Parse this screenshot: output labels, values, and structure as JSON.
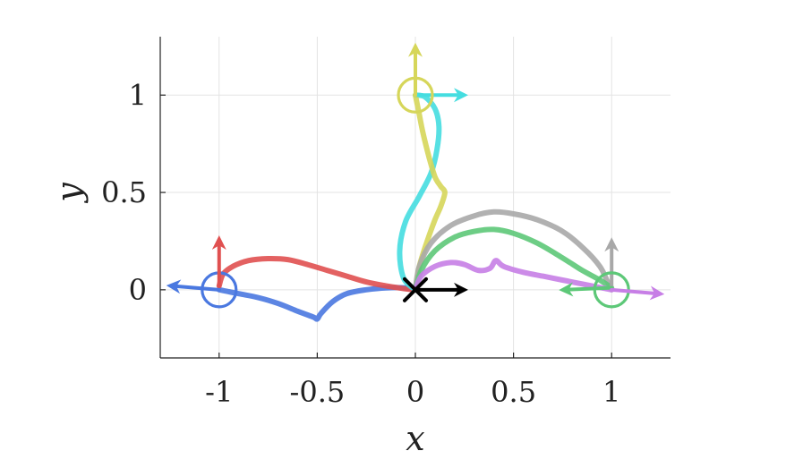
{
  "chart_data": {
    "type": "line",
    "title": "",
    "xlabel": "x",
    "ylabel": "y",
    "xlim": [
      -1.3,
      1.3
    ],
    "ylim": [
      -0.35,
      1.3
    ],
    "xticks": [
      -1,
      -0.5,
      0,
      0.5,
      1
    ],
    "xtick_labels": [
      "-1",
      "-0.5",
      "0",
      "0.5",
      "1"
    ],
    "yticks": [
      0,
      0.5,
      1
    ],
    "ytick_labels": [
      "0",
      "0.5",
      "1"
    ],
    "grid": true,
    "origin_marker": {
      "symbol": "×",
      "x": 0,
      "y": 0,
      "color": "#000000"
    },
    "series": [
      {
        "color": "#4a78e0",
        "points": [
          [
            -1,
            0
          ],
          [
            -0.9,
            -0.02
          ],
          [
            -0.8,
            -0.04
          ],
          [
            -0.7,
            -0.07
          ],
          [
            -0.6,
            -0.11
          ],
          [
            -0.52,
            -0.14
          ],
          [
            -0.5,
            -0.15
          ],
          [
            -0.48,
            -0.12
          ],
          [
            -0.42,
            -0.06
          ],
          [
            -0.35,
            -0.02
          ],
          [
            -0.25,
            0.0
          ],
          [
            -0.15,
            0.01
          ],
          [
            -0.05,
            0.01
          ],
          [
            0,
            0
          ]
        ],
        "start_arrow": {
          "x": -1,
          "y": 0,
          "dx": -0.24,
          "dy": 0.02
        },
        "goal_circle": {
          "x": -1,
          "y": 0
        }
      },
      {
        "color": "#e05050",
        "points": [
          [
            -1,
            0.02
          ],
          [
            -0.98,
            0.08
          ],
          [
            -0.93,
            0.12
          ],
          [
            -0.85,
            0.15
          ],
          [
            -0.75,
            0.16
          ],
          [
            -0.65,
            0.155
          ],
          [
            -0.55,
            0.13
          ],
          [
            -0.45,
            0.1
          ],
          [
            -0.35,
            0.07
          ],
          [
            -0.25,
            0.04
          ],
          [
            -0.15,
            0.02
          ],
          [
            -0.05,
            0.005
          ],
          [
            0,
            0
          ]
        ],
        "start_arrow": {
          "x": -1,
          "y": 0.02,
          "dx": 0,
          "dy": 0.23
        }
      },
      {
        "color": "#45dde0",
        "points": [
          [
            0,
            0
          ],
          [
            -0.06,
            0.06
          ],
          [
            -0.08,
            0.2
          ],
          [
            -0.05,
            0.35
          ],
          [
            0.02,
            0.48
          ],
          [
            0.08,
            0.6
          ],
          [
            0.11,
            0.72
          ],
          [
            0.12,
            0.84
          ],
          [
            0.1,
            0.93
          ],
          [
            0.05,
            0.99
          ],
          [
            0,
            1
          ]
        ],
        "start_arrow": {
          "x": 0,
          "y": 1,
          "dx": 0.24,
          "dy": 0
        }
      },
      {
        "color": "#d6d65a",
        "points": [
          [
            0,
            0
          ],
          [
            0.02,
            0.12
          ],
          [
            0.06,
            0.25
          ],
          [
            0.1,
            0.36
          ],
          [
            0.13,
            0.43
          ],
          [
            0.15,
            0.5
          ],
          [
            0.13,
            0.53
          ],
          [
            0.1,
            0.58
          ],
          [
            0.07,
            0.68
          ],
          [
            0.04,
            0.8
          ],
          [
            0.02,
            0.9
          ],
          [
            0,
            1
          ]
        ],
        "start_arrow": {
          "x": 0,
          "y": 1,
          "dx": 0,
          "dy": 0.24
        },
        "goal_circle": {
          "x": 0,
          "y": 1
        }
      },
      {
        "color": "#a8a8a8",
        "points": [
          [
            0,
            0
          ],
          [
            0.02,
            0.12
          ],
          [
            0.08,
            0.24
          ],
          [
            0.18,
            0.33
          ],
          [
            0.3,
            0.38
          ],
          [
            0.4,
            0.4
          ],
          [
            0.5,
            0.39
          ],
          [
            0.62,
            0.36
          ],
          [
            0.75,
            0.3
          ],
          [
            0.86,
            0.21
          ],
          [
            0.94,
            0.12
          ],
          [
            0.98,
            0.04
          ],
          [
            1,
            0
          ]
        ],
        "start_arrow": {
          "x": 1,
          "y": 0,
          "dx": 0,
          "dy": 0.24
        }
      },
      {
        "color": "#5dc878",
        "points": [
          [
            0,
            0
          ],
          [
            0.03,
            0.1
          ],
          [
            0.1,
            0.2
          ],
          [
            0.2,
            0.27
          ],
          [
            0.3,
            0.3
          ],
          [
            0.4,
            0.31
          ],
          [
            0.5,
            0.29
          ],
          [
            0.62,
            0.24
          ],
          [
            0.74,
            0.17
          ],
          [
            0.85,
            0.1
          ],
          [
            0.94,
            0.05
          ],
          [
            1,
            0.01
          ]
        ],
        "start_arrow": {
          "x": 1,
          "y": 0.01,
          "dx": -0.24,
          "dy": -0.01
        },
        "goal_circle": {
          "x": 1,
          "y": 0
        }
      },
      {
        "color": "#c77ee6",
        "points": [
          [
            0,
            0
          ],
          [
            0.03,
            0.07
          ],
          [
            0.1,
            0.12
          ],
          [
            0.18,
            0.14
          ],
          [
            0.25,
            0.13
          ],
          [
            0.32,
            0.1
          ],
          [
            0.38,
            0.11
          ],
          [
            0.41,
            0.15
          ],
          [
            0.45,
            0.12
          ],
          [
            0.55,
            0.09
          ],
          [
            0.65,
            0.07
          ],
          [
            0.75,
            0.05
          ],
          [
            0.85,
            0.03
          ],
          [
            0.95,
            0.01
          ],
          [
            1,
            0
          ]
        ],
        "start_arrow": {
          "x": 1,
          "y": 0,
          "dx": 0.24,
          "dy": -0.02
        }
      },
      {
        "color": "#000000",
        "points": [],
        "start_arrow": {
          "x": 0,
          "y": 0,
          "dx": 0.24,
          "dy": 0
        }
      }
    ]
  }
}
